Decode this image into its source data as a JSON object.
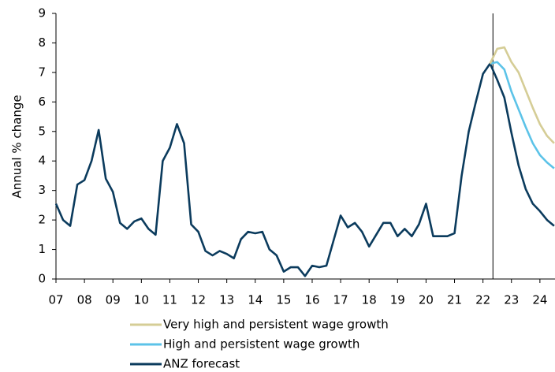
{
  "chart_data": {
    "type": "line",
    "ylabel": "Annual % change",
    "ylim": [
      0,
      9
    ],
    "yticks": [
      0,
      1,
      2,
      3,
      4,
      5,
      6,
      7,
      8,
      9
    ],
    "xlim": [
      2007,
      2024.53
    ],
    "xticks": [
      {
        "value": 2007,
        "label": "07"
      },
      {
        "value": 2008,
        "label": "08"
      },
      {
        "value": 2009,
        "label": "09"
      },
      {
        "value": 2010,
        "label": "10"
      },
      {
        "value": 2011,
        "label": "11"
      },
      {
        "value": 2012,
        "label": "12"
      },
      {
        "value": 2013,
        "label": "13"
      },
      {
        "value": 2014,
        "label": "14"
      },
      {
        "value": 2015,
        "label": "15"
      },
      {
        "value": 2016,
        "label": "16"
      },
      {
        "value": 2017,
        "label": "17"
      },
      {
        "value": 2018,
        "label": "18"
      },
      {
        "value": 2019,
        "label": "19"
      },
      {
        "value": 2020,
        "label": "20"
      },
      {
        "value": 2021,
        "label": "21"
      },
      {
        "value": 2022,
        "label": "22"
      },
      {
        "value": 2023,
        "label": "23"
      },
      {
        "value": 2024,
        "label": "24"
      }
    ],
    "vline": 2022.35,
    "series": [
      {
        "name": "Very high and persistent wage growth",
        "color": "#d5cd96",
        "x": [
          2022.25,
          2022.5,
          2022.75,
          2023.0,
          2023.25,
          2023.5,
          2023.75,
          2024.0,
          2024.25,
          2024.5
        ],
        "values": [
          7.3,
          7.8,
          7.85,
          7.35,
          7.0,
          6.4,
          5.8,
          5.25,
          4.85,
          4.6
        ]
      },
      {
        "name": "High and persistent wage growth",
        "color": "#5cc3e8",
        "x": [
          2022.25,
          2022.5,
          2022.75,
          2023.0,
          2023.25,
          2023.5,
          2023.75,
          2024.0,
          2024.25,
          2024.5
        ],
        "values": [
          7.3,
          7.35,
          7.1,
          6.35,
          5.75,
          5.15,
          4.6,
          4.2,
          3.95,
          3.75
        ]
      },
      {
        "name": "ANZ forecast",
        "color": "#0b3b5d",
        "x": [
          2007.0,
          2007.25,
          2007.5,
          2007.75,
          2008.0,
          2008.25,
          2008.5,
          2008.75,
          2009.0,
          2009.25,
          2009.5,
          2009.75,
          2010.0,
          2010.25,
          2010.5,
          2010.75,
          2011.0,
          2011.25,
          2011.5,
          2011.75,
          2012.0,
          2012.25,
          2012.5,
          2012.75,
          2013.0,
          2013.25,
          2013.5,
          2013.75,
          2014.0,
          2014.25,
          2014.5,
          2014.75,
          2015.0,
          2015.25,
          2015.5,
          2015.75,
          2016.0,
          2016.25,
          2016.5,
          2016.75,
          2017.0,
          2017.25,
          2017.5,
          2017.75,
          2018.0,
          2018.25,
          2018.5,
          2018.75,
          2019.0,
          2019.25,
          2019.5,
          2019.75,
          2020.0,
          2020.25,
          2020.5,
          2020.75,
          2021.0,
          2021.25,
          2021.5,
          2021.75,
          2022.0,
          2022.25,
          2022.5,
          2022.75,
          2023.0,
          2023.25,
          2023.5,
          2023.75,
          2024.0,
          2024.25,
          2024.5
        ],
        "values": [
          2.55,
          2.0,
          1.8,
          3.2,
          3.35,
          4.0,
          5.05,
          3.4,
          2.95,
          1.9,
          1.7,
          1.95,
          2.05,
          1.7,
          1.5,
          4.0,
          4.45,
          5.25,
          4.6,
          1.85,
          1.6,
          0.95,
          0.8,
          0.95,
          0.85,
          0.7,
          1.35,
          1.6,
          1.55,
          1.6,
          1.0,
          0.8,
          0.25,
          0.4,
          0.4,
          0.1,
          0.45,
          0.4,
          0.45,
          1.3,
          2.15,
          1.75,
          1.9,
          1.6,
          1.1,
          1.5,
          1.9,
          1.9,
          1.45,
          1.7,
          1.45,
          1.85,
          2.55,
          1.45,
          1.45,
          1.45,
          1.55,
          3.5,
          5.0,
          6.0,
          6.95,
          7.3,
          6.75,
          6.15,
          4.95,
          3.85,
          3.05,
          2.55,
          2.3,
          2.0,
          1.8
        ]
      }
    ]
  }
}
